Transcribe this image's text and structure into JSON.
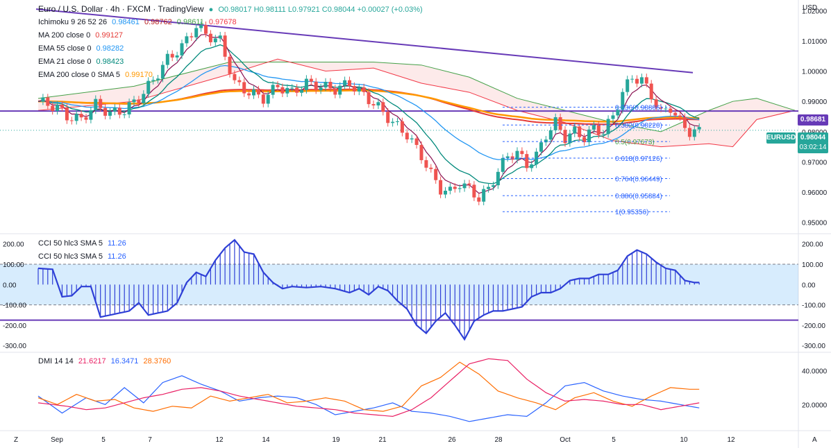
{
  "header": {
    "symbol_title": "Euro / U.S. Dollar · 4h · FXCM · TradingView",
    "ohlc": "O0.98017 H0.98111 L0.97921 C0.98044 +0.00027 (+0.03%)",
    "currency": "USD"
  },
  "legend": {
    "ichimoku": {
      "name": "Ichimoku 9 26 52 26",
      "v1": "0.98461",
      "v2": "0.98762",
      "v3": "0.98611",
      "v4": "0.97678"
    },
    "ma200": {
      "name": "MA 200 close 0",
      "value": "0.99127"
    },
    "ema55": {
      "name": "EMA 55 close 0",
      "value": "0.98282"
    },
    "ema21": {
      "name": "EMA 21 close 0",
      "value": "0.98423"
    },
    "ema200": {
      "name": "EMA 200 close 0 SMA 5",
      "value": "0.99170"
    },
    "cci_a": {
      "name": "CCI 50 hlc3 SMA 5",
      "value": "11.26"
    },
    "cci_b": {
      "name": "CCI 50 hlc3 SMA 5",
      "value": "11.26"
    },
    "dmi": {
      "name": "DMI 14 14",
      "v1": "21.6217",
      "v2": "16.3471",
      "v3": "28.3760"
    }
  },
  "price_tags": {
    "line": "0.98681",
    "eurusd_label": "EURUSD",
    "last": "0.98044",
    "countdown": "03:02:14"
  },
  "fib_levels": [
    {
      "label": "0.236(0.98806)",
      "value": 0.98806
    },
    {
      "label": "0.382(0.98220)",
      "value": 0.9822
    },
    {
      "label": "0.5(0.97673)",
      "value": 0.97673
    },
    {
      "label": "0.618(0.97126)",
      "value": 0.97126
    },
    {
      "label": "0.764(0.96449)",
      "value": 0.96449
    },
    {
      "label": "0.886(0.95884)",
      "value": 0.95884
    },
    {
      "label": "1(0.95356)",
      "value": 0.95356
    }
  ],
  "x_axis": {
    "left_icon": "Z",
    "right_icon": "A",
    "ticks": [
      "Sep",
      "5",
      "7",
      "12",
      "14",
      "19",
      "21",
      "26",
      "28",
      "Oct",
      "5",
      "10",
      "12"
    ]
  },
  "price_axis_ticks": [
    "1.02000",
    "1.01000",
    "1.00000",
    "0.99000",
    "0.98000",
    "0.97000",
    "0.96000",
    "0.95000"
  ],
  "cci_axis_ticks": [
    "200.00",
    "100.00",
    "0.00",
    "-100.00",
    "-200.00",
    "-300.00"
  ],
  "dmi_axis_ticks": [
    "40.0000",
    "20.0000"
  ],
  "colors": {
    "up": "#26a69a",
    "down": "#ef5350",
    "trendline": "#673ab7",
    "ma200": "#e53935",
    "ema200": "#ff9800",
    "ema55": "#2196f3",
    "ema21": "#00897b",
    "cci": "#2e3fd6",
    "dmi_plus": "#2962ff",
    "dmi_minus": "#ff6d00",
    "adx": "#e91e63"
  },
  "chart_data": {
    "type": "candlestick",
    "price_ylim": [
      0.9465,
      1.0235
    ],
    "anchors_price": [
      [
        0,
        0.99
      ],
      [
        4,
        0.988
      ],
      [
        6,
        0.985
      ],
      [
        9,
        0.984
      ],
      [
        12,
        0.989
      ],
      [
        15,
        0.986
      ],
      [
        18,
        0.987
      ],
      [
        21,
        0.991
      ],
      [
        24,
        0.997
      ],
      [
        27,
        1.004
      ],
      [
        30,
        1.008
      ],
      [
        33,
        1.015
      ],
      [
        35,
        1.012
      ],
      [
        38,
        1.01
      ],
      [
        41,
        0.996
      ],
      [
        44,
        0.993
      ],
      [
        47,
        0.991
      ],
      [
        50,
        0.995
      ],
      [
        53,
        0.993
      ],
      [
        56,
        0.996
      ],
      [
        59,
        0.995
      ],
      [
        62,
        0.994
      ],
      [
        65,
        0.996
      ],
      [
        68,
        0.992
      ],
      [
        71,
        0.988
      ],
      [
        74,
        0.983
      ],
      [
        77,
        0.979
      ],
      [
        80,
        0.972
      ],
      [
        82,
        0.966
      ],
      [
        84,
        0.961
      ],
      [
        86,
        0.96
      ],
      [
        88,
        0.963
      ],
      [
        90,
        0.961
      ],
      [
        92,
        0.958
      ],
      [
        94,
        0.961
      ],
      [
        96,
        0.967
      ],
      [
        98,
        0.972
      ],
      [
        100,
        0.973
      ],
      [
        102,
        0.969
      ],
      [
        104,
        0.972
      ],
      [
        106,
        0.979
      ],
      [
        108,
        0.983
      ],
      [
        110,
        0.978
      ],
      [
        112,
        0.98
      ],
      [
        114,
        0.978
      ],
      [
        116,
        0.981
      ],
      [
        118,
        0.98
      ],
      [
        120,
        0.985
      ],
      [
        122,
        0.993
      ],
      [
        124,
        0.998
      ],
      [
        126,
        0.997
      ],
      [
        128,
        0.992
      ],
      [
        130,
        0.986
      ],
      [
        132,
        0.988
      ],
      [
        134,
        0.983
      ],
      [
        136,
        0.98
      ],
      [
        138,
        0.98
      ]
    ],
    "ichimoku_cloud": [
      [
        0,
        0.991,
        0.987
      ],
      [
        20,
        0.995,
        0.99
      ],
      [
        40,
        1.003,
        0.999
      ],
      [
        50,
        1.003,
        1.004
      ],
      [
        60,
        1.003,
        1.0
      ],
      [
        70,
        1.003,
        1.001
      ],
      [
        80,
        1.002,
        0.996
      ],
      [
        90,
        0.998,
        0.993
      ],
      [
        100,
        0.991,
        0.987
      ],
      [
        110,
        0.987,
        0.983
      ],
      [
        120,
        0.983,
        0.977
      ],
      [
        130,
        0.98,
        0.975
      ],
      [
        140,
        0.987,
        0.976
      ],
      [
        145,
        0.99,
        0.975
      ],
      [
        150,
        0.991,
        0.984
      ],
      [
        158,
        0.987,
        0.987
      ]
    ],
    "cci_ylim": [
      -330,
      240
    ],
    "cci_values": [
      [
        0,
        80
      ],
      [
        3,
        75
      ],
      [
        5,
        -60
      ],
      [
        7,
        -55
      ],
      [
        9,
        -10
      ],
      [
        11,
        -10
      ],
      [
        13,
        -160
      ],
      [
        15,
        -150
      ],
      [
        17,
        -140
      ],
      [
        19,
        -130
      ],
      [
        21,
        -90
      ],
      [
        23,
        -150
      ],
      [
        25,
        -140
      ],
      [
        27,
        -130
      ],
      [
        29,
        -90
      ],
      [
        31,
        10
      ],
      [
        33,
        60
      ],
      [
        35,
        40
      ],
      [
        37,
        120
      ],
      [
        39,
        180
      ],
      [
        41,
        220
      ],
      [
        43,
        160
      ],
      [
        45,
        150
      ],
      [
        47,
        60
      ],
      [
        49,
        10
      ],
      [
        51,
        -20
      ],
      [
        53,
        -10
      ],
      [
        56,
        -15
      ],
      [
        59,
        -10
      ],
      [
        62,
        -20
      ],
      [
        65,
        -40
      ],
      [
        67,
        -20
      ],
      [
        69,
        -50
      ],
      [
        71,
        -10
      ],
      [
        73,
        -30
      ],
      [
        75,
        -80
      ],
      [
        77,
        -120
      ],
      [
        79,
        -200
      ],
      [
        81,
        -240
      ],
      [
        83,
        -180
      ],
      [
        85,
        -140
      ],
      [
        87,
        -200
      ],
      [
        89,
        -270
      ],
      [
        91,
        -180
      ],
      [
        93,
        -150
      ],
      [
        95,
        -130
      ],
      [
        97,
        -130
      ],
      [
        99,
        -120
      ],
      [
        101,
        -110
      ],
      [
        103,
        -60
      ],
      [
        105,
        -40
      ],
      [
        107,
        -40
      ],
      [
        109,
        -20
      ],
      [
        111,
        20
      ],
      [
        113,
        30
      ],
      [
        115,
        30
      ],
      [
        117,
        50
      ],
      [
        119,
        50
      ],
      [
        121,
        70
      ],
      [
        123,
        140
      ],
      [
        125,
        170
      ],
      [
        127,
        150
      ],
      [
        129,
        110
      ],
      [
        131,
        80
      ],
      [
        133,
        70
      ],
      [
        135,
        20
      ],
      [
        137,
        10
      ],
      [
        139,
        10
      ]
    ],
    "cci_bands": [
      100,
      -100,
      -175
    ],
    "dmi_ylim": [
      5,
      50
    ],
    "dmi_plus": [
      [
        0,
        25
      ],
      [
        5,
        15
      ],
      [
        10,
        24
      ],
      [
        14,
        20
      ],
      [
        18,
        30
      ],
      [
        22,
        21
      ],
      [
        26,
        33
      ],
      [
        30,
        37
      ],
      [
        34,
        32
      ],
      [
        38,
        28
      ],
      [
        42,
        22
      ],
      [
        46,
        24
      ],
      [
        50,
        25
      ],
      [
        54,
        24
      ],
      [
        58,
        20
      ],
      [
        62,
        14
      ],
      [
        66,
        16
      ],
      [
        70,
        18
      ],
      [
        74,
        21
      ],
      [
        78,
        16
      ],
      [
        82,
        15
      ],
      [
        86,
        13
      ],
      [
        90,
        10
      ],
      [
        94,
        12
      ],
      [
        98,
        14
      ],
      [
        102,
        13
      ],
      [
        106,
        21
      ],
      [
        110,
        31
      ],
      [
        114,
        33
      ],
      [
        118,
        28
      ],
      [
        122,
        25
      ],
      [
        126,
        23
      ],
      [
        130,
        22
      ],
      [
        134,
        20
      ],
      [
        138,
        18
      ]
    ],
    "dmi_minus": [
      [
        0,
        24
      ],
      [
        4,
        20
      ],
      [
        8,
        26
      ],
      [
        12,
        22
      ],
      [
        16,
        23
      ],
      [
        20,
        18
      ],
      [
        24,
        16
      ],
      [
        28,
        19
      ],
      [
        32,
        18
      ],
      [
        36,
        25
      ],
      [
        40,
        22
      ],
      [
        44,
        24
      ],
      [
        48,
        26
      ],
      [
        52,
        21
      ],
      [
        56,
        22
      ],
      [
        60,
        24
      ],
      [
        64,
        22
      ],
      [
        68,
        17
      ],
      [
        72,
        16
      ],
      [
        76,
        19
      ],
      [
        80,
        31
      ],
      [
        84,
        36
      ],
      [
        88,
        45
      ],
      [
        92,
        38
      ],
      [
        96,
        28
      ],
      [
        100,
        24
      ],
      [
        104,
        21
      ],
      [
        108,
        17
      ],
      [
        112,
        24
      ],
      [
        116,
        27
      ],
      [
        120,
        22
      ],
      [
        124,
        19
      ],
      [
        128,
        25
      ],
      [
        132,
        30
      ],
      [
        136,
        29
      ],
      [
        138,
        29
      ]
    ],
    "dmi_adx": [
      [
        0,
        21
      ],
      [
        6,
        19
      ],
      [
        10,
        17
      ],
      [
        14,
        18
      ],
      [
        18,
        21
      ],
      [
        22,
        24
      ],
      [
        26,
        26
      ],
      [
        30,
        29
      ],
      [
        34,
        30
      ],
      [
        38,
        28
      ],
      [
        42,
        25
      ],
      [
        46,
        23
      ],
      [
        50,
        21
      ],
      [
        54,
        19
      ],
      [
        58,
        18
      ],
      [
        62,
        17
      ],
      [
        66,
        15
      ],
      [
        70,
        14
      ],
      [
        74,
        13
      ],
      [
        78,
        17
      ],
      [
        82,
        24
      ],
      [
        86,
        34
      ],
      [
        90,
        44
      ],
      [
        94,
        47
      ],
      [
        98,
        46
      ],
      [
        102,
        35
      ],
      [
        106,
        27
      ],
      [
        110,
        22
      ],
      [
        114,
        23
      ],
      [
        118,
        22
      ],
      [
        122,
        20
      ],
      [
        126,
        20
      ],
      [
        130,
        17
      ],
      [
        134,
        19
      ],
      [
        138,
        21
      ]
    ]
  }
}
